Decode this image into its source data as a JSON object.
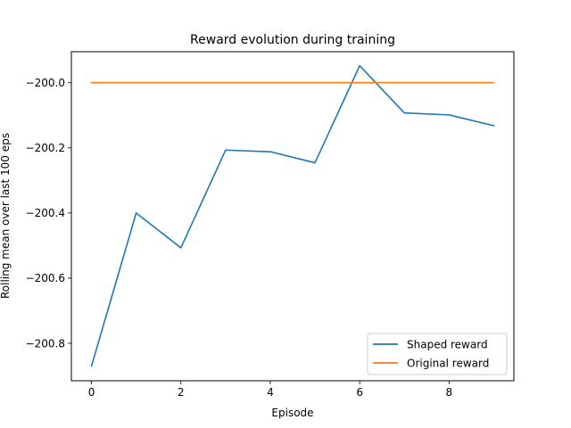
{
  "chart_data": {
    "type": "line",
    "title": "Reward evolution during training",
    "xlabel": "Episode",
    "ylabel": "Rolling mean over last 100 eps",
    "x": [
      0,
      1,
      2,
      3,
      4,
      5,
      6,
      7,
      8,
      9
    ],
    "xlim": [
      -0.45,
      9.45
    ],
    "ylim": [
      -200.915,
      -199.905
    ],
    "xticks": [
      0,
      2,
      4,
      6,
      8
    ],
    "xtick_labels": [
      "0",
      "2",
      "4",
      "6",
      "8"
    ],
    "yticks": [
      -200.8,
      -200.6,
      -200.4,
      -200.2,
      -200.0
    ],
    "ytick_labels": [
      "−200.8",
      "−200.6",
      "−200.4",
      "−200.2",
      "−200.0"
    ],
    "grid": false,
    "legend_position": "lower-right",
    "series": [
      {
        "name": "Shaped reward",
        "color": "#1f77b4",
        "values": [
          -200.87,
          -200.4,
          -200.507,
          -200.207,
          -200.212,
          -200.246,
          -199.948,
          -200.093,
          -200.099,
          -200.132
        ]
      },
      {
        "name": "Original reward",
        "color": "#ff7f0e",
        "values": [
          -200.0,
          -200.0,
          -200.0,
          -200.0,
          -200.0,
          -200.0,
          -200.0,
          -200.0,
          -200.0,
          -200.0
        ]
      }
    ]
  }
}
